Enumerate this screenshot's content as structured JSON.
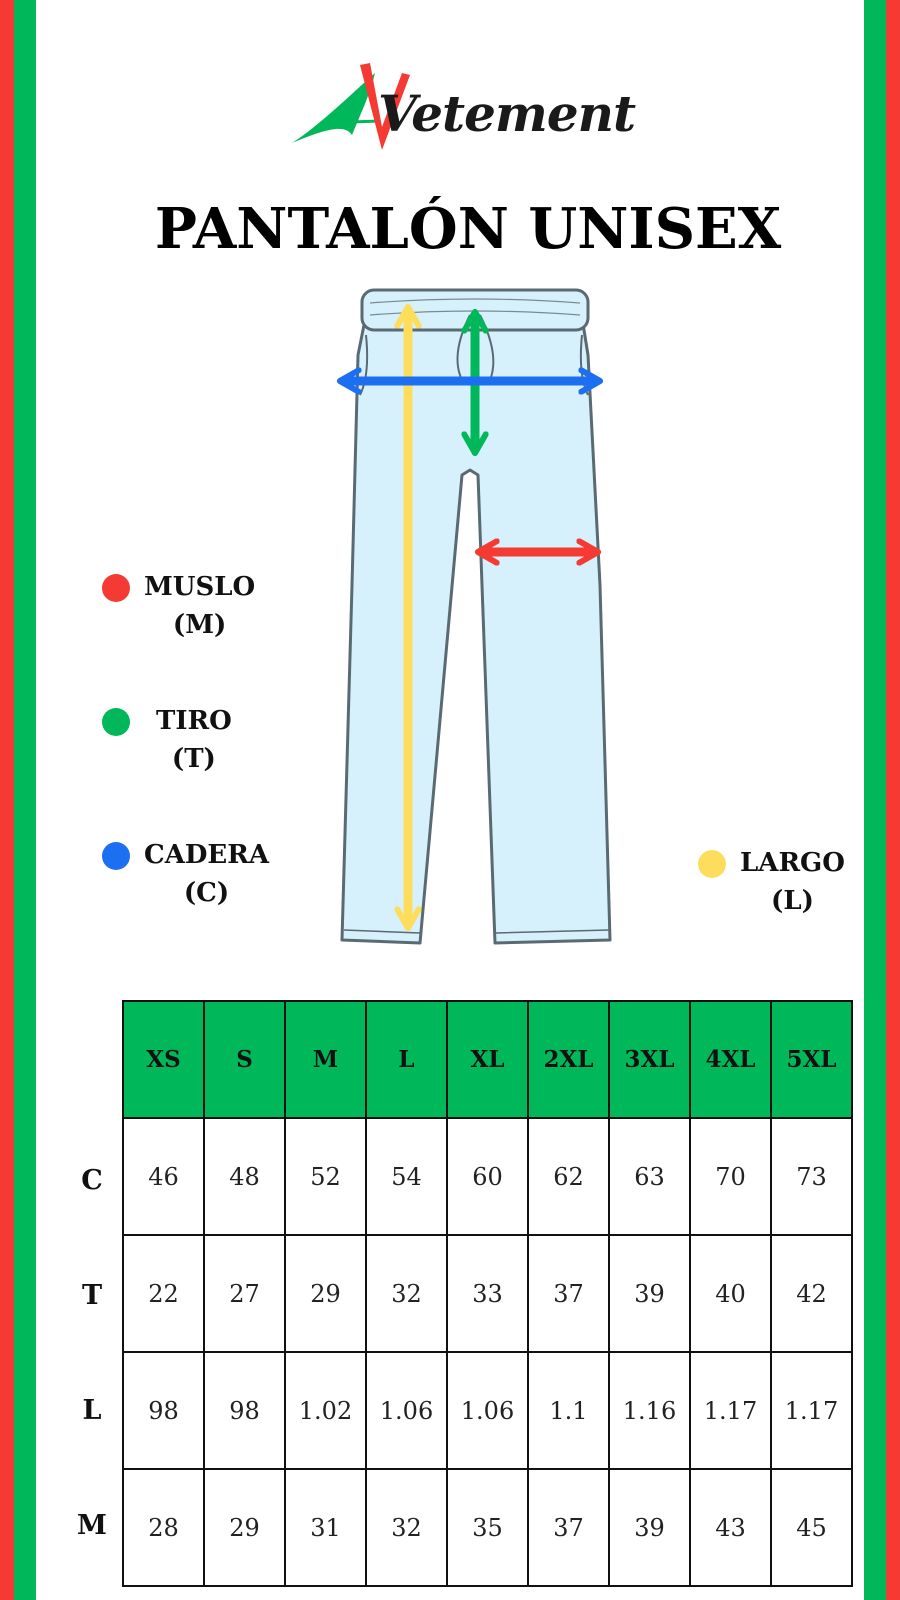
{
  "colors": {
    "red": "#f43a32",
    "green": "#00b85a",
    "blue": "#1d6ff2",
    "yellow": "#ffdd5c",
    "pants": "#d6f1fb"
  },
  "brand": {
    "logo_text": "Vetement",
    "logo_initial": "A"
  },
  "title": "PANTALÓN UNISEX",
  "legend": [
    {
      "name": "MUSLO",
      "abbr": "(M)",
      "color": "red"
    },
    {
      "name": "TIRO",
      "abbr": "(T)",
      "color": "green"
    },
    {
      "name": "CADERA",
      "abbr": "(C)",
      "color": "blue"
    },
    {
      "name": "LARGO",
      "abbr": "(L)",
      "color": "yellow"
    }
  ],
  "table": {
    "sizes": [
      "XS",
      "S",
      "M",
      "L",
      "XL",
      "2XL",
      "3XL",
      "4XL",
      "5XL"
    ],
    "rows": [
      {
        "label": "C",
        "values": [
          "46",
          "48",
          "52",
          "54",
          "60",
          "62",
          "63",
          "70",
          "73"
        ]
      },
      {
        "label": "T",
        "values": [
          "22",
          "27",
          "29",
          "32",
          "33",
          "37",
          "39",
          "40",
          "42"
        ]
      },
      {
        "label": "L",
        "values": [
          "98",
          "98",
          "1.02",
          "1.06",
          "1.06",
          "1.1",
          "1.16",
          "1.17",
          "1.17"
        ]
      },
      {
        "label": "M",
        "values": [
          "28",
          "29",
          "31",
          "32",
          "35",
          "37",
          "39",
          "43",
          "45"
        ]
      }
    ]
  }
}
